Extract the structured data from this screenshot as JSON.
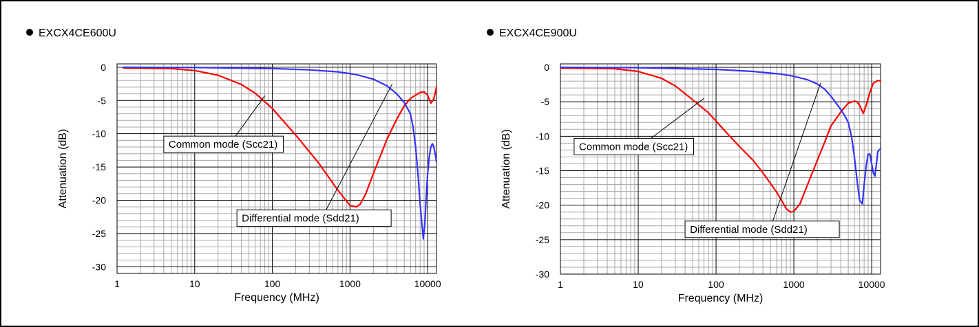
{
  "chart_data": [
    {
      "type": "line",
      "title": "EXCX4CE600U",
      "xlabel": "Frequency (MHz)",
      "ylabel": "Attenuation (dB)",
      "x_scale": "log",
      "xlim": [
        1,
        13000
      ],
      "ylim": [
        -31,
        0.5
      ],
      "x_ticks": [
        1,
        10,
        100,
        1000,
        10000
      ],
      "x_tick_labels": [
        "1",
        "10",
        "100",
        "1000",
        "10000"
      ],
      "y_ticks": [
        0,
        -5,
        -10,
        -15,
        -20,
        -25,
        -30
      ],
      "y_tick_labels": [
        "0",
        "-5",
        "-10",
        "-15",
        "-20",
        "-25",
        "-30"
      ],
      "grid": true,
      "series": [
        {
          "color": "#ff0000",
          "x": [
            1.2,
            5,
            10,
            20,
            40,
            60,
            100,
            200,
            400,
            700,
            1000,
            1200,
            1350,
            1600,
            2000,
            3000,
            4000,
            5000,
            6000,
            7000,
            8000,
            9000,
            10000,
            11000,
            12000,
            13000
          ],
          "y": [
            -0.1,
            -0.2,
            -0.5,
            -1.2,
            -2.6,
            -3.9,
            -6.2,
            -10.2,
            -14.5,
            -18.5,
            -20.8,
            -21.0,
            -20.6,
            -19.0,
            -16.0,
            -10.8,
            -7.8,
            -5.8,
            -4.7,
            -4.2,
            -3.8,
            -3.7,
            -4.2,
            -5.4,
            -4.8,
            -3.0
          ]
        },
        {
          "color": "#3333ff",
          "x": [
            1.2,
            10,
            100,
            300,
            700,
            1200,
            2000,
            3000,
            4000,
            5000,
            6000,
            6500,
            7000,
            7500,
            8000,
            8500,
            8800,
            9200,
            9600,
            10000,
            10500,
            11000,
            11500,
            12000,
            12500,
            13000
          ],
          "y": [
            0,
            -0.05,
            -0.2,
            -0.4,
            -0.7,
            -1.1,
            -1.8,
            -2.8,
            -4.0,
            -5.3,
            -7.0,
            -9.0,
            -12.0,
            -16.0,
            -20.5,
            -24.0,
            -25.8,
            -23.5,
            -19.5,
            -16.0,
            -13.5,
            -12.0,
            -11.5,
            -12.0,
            -13.0,
            -14.2
          ]
        }
      ],
      "annotations": [
        {
          "text": "Common mode (Scc21)",
          "x": 4,
          "y": -11.6,
          "target_x": 80,
          "target_y": -4.3
        },
        {
          "text": "Differential mode (Sdd21)",
          "x": 35,
          "y": -22.7,
          "target_x": 3500,
          "target_y": -2.5
        }
      ]
    },
    {
      "type": "line",
      "title": "EXCX4CE900U",
      "xlabel": "Frequency (MHz)",
      "ylabel": "Attenuation (dB)",
      "x_scale": "log",
      "xlim": [
        1,
        13000
      ],
      "ylim": [
        -30,
        0.5
      ],
      "x_ticks": [
        1,
        10,
        100,
        1000,
        10000
      ],
      "x_tick_labels": [
        "1",
        "10",
        "100",
        "1000",
        "10000"
      ],
      "y_ticks": [
        0,
        -5,
        -10,
        -15,
        -20,
        -25,
        -30
      ],
      "y_tick_labels": [
        "0",
        "-5",
        "-10",
        "-15",
        "-20",
        "-25",
        "-30"
      ],
      "grid": true,
      "series": [
        {
          "color": "#ff0000",
          "x": [
            1,
            5,
            10,
            20,
            30,
            50,
            80,
            100,
            150,
            200,
            300,
            400,
            600,
            800,
            900,
            1000,
            1200,
            1500,
            2000,
            2500,
            3000,
            4000,
            5000,
            6000,
            6500,
            7000,
            7800,
            8500,
            9500,
            10500,
            12000,
            13000
          ],
          "y": [
            -0.1,
            -0.2,
            -0.6,
            -1.6,
            -2.7,
            -4.7,
            -6.6,
            -7.8,
            -10.0,
            -11.5,
            -13.5,
            -15.3,
            -18.1,
            -20.5,
            -21.0,
            -20.9,
            -19.8,
            -17.0,
            -13.5,
            -10.8,
            -8.5,
            -6.5,
            -5.2,
            -4.9,
            -5.0,
            -5.5,
            -6.7,
            -5.5,
            -3.6,
            -2.3,
            -1.9,
            -2.0
          ]
        },
        {
          "color": "#3333ff",
          "x": [
            1,
            10,
            100,
            300,
            700,
            1000,
            1500,
            2000,
            2500,
            3000,
            3500,
            4000,
            4500,
            5000,
            5500,
            6000,
            6500,
            7000,
            7600,
            8000,
            8500,
            9000,
            9500,
            10000,
            10500,
            11000,
            11500,
            12000,
            13000
          ],
          "y": [
            0,
            -0.05,
            -0.3,
            -0.6,
            -1.0,
            -1.3,
            -1.8,
            -2.4,
            -3.2,
            -4.2,
            -5.2,
            -6.1,
            -7.0,
            -8.0,
            -10.0,
            -13.0,
            -16.5,
            -19.3,
            -19.8,
            -17.0,
            -14.3,
            -12.6,
            -12.6,
            -14.0,
            -15.3,
            -15.8,
            -14.0,
            -12.2,
            -11.8
          ]
        }
      ],
      "annotations": [
        {
          "text": "Common mode (Scc21)",
          "x": 1.5,
          "y": -11.5,
          "target_x": 70,
          "target_y": -4.5
        },
        {
          "text": "Differential mode (Sdd21)",
          "x": 40,
          "y": -23.5,
          "target_x": 2200,
          "target_y": -2.3
        }
      ]
    }
  ]
}
